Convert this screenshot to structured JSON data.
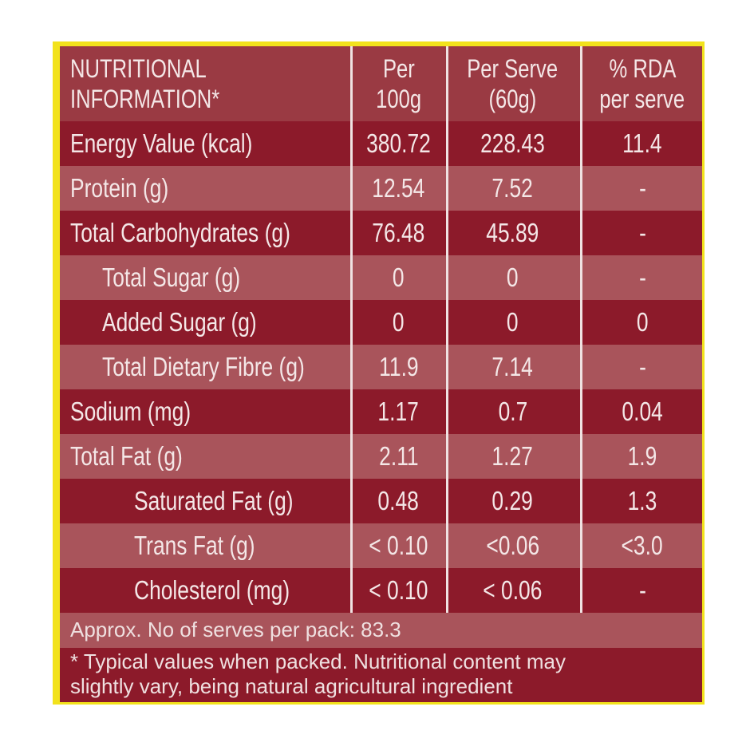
{
  "table": {
    "columns": [
      [
        "NUTRITIONAL",
        "INFORMATION*"
      ],
      [
        "Per",
        "100g"
      ],
      [
        "Per Serve",
        "(60g)"
      ],
      [
        "% RDA",
        "per serve"
      ]
    ],
    "rows": [
      [
        "Energy Value  (kcal)",
        380.72,
        228.43,
        11.4
      ],
      [
        "Protein  (g)",
        12.54,
        7.52,
        "-"
      ],
      [
        "Total Carbohydrates  (g)",
        76.48,
        45.89,
        "-"
      ],
      [
        "Total Sugar (g)",
        0,
        0,
        "-"
      ],
      [
        "Added Sugar (g)",
        0,
        0,
        0
      ],
      [
        "Total Dietary Fibre (g)",
        11.9,
        7.14,
        "-"
      ],
      [
        "Sodium (mg)",
        1.17,
        0.7,
        0.04
      ],
      [
        "Total Fat (g)",
        2.11,
        1.27,
        1.9
      ],
      [
        "Saturated Fat (g)",
        0.48,
        0.29,
        1.3
      ],
      [
        "Trans Fat (g)",
        "< 0.10",
        "<0.06",
        "<3.0"
      ],
      [
        "Cholesterol  (mg)",
        "< 0.10",
        "< 0.06",
        "-"
      ]
    ]
  },
  "footer": {
    "serves": "Approx. No of serves per pack: 83.3",
    "note": [
      "* Typical values when packed. Nutritional content may",
      "slightly vary, being natural agricultural ingredient"
    ]
  }
}
